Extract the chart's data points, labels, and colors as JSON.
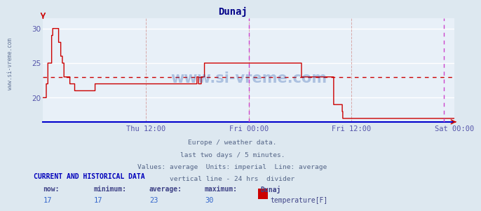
{
  "title": "Dunaj",
  "bg_color": "#dde8f0",
  "plot_bg_color": "#e8f0f8",
  "grid_color": "#ffffff",
  "line_color": "#cc0000",
  "avg_line_color": "#cc0000",
  "avg_line_value": 23,
  "vline_color": "#cc44cc",
  "vline_positions": [
    0.5,
    0.974
  ],
  "xlabel_color": "#5555aa",
  "title_color": "#000088",
  "xlabels": [
    "Thu 12:00",
    "Fri 00:00",
    "Fri 12:00",
    "Sat 00:00"
  ],
  "xlabels_xpos": [
    0.25,
    0.5,
    0.75,
    1.0
  ],
  "ylim": [
    16.5,
    31.5
  ],
  "yticks": [
    20,
    25,
    30
  ],
  "text_lines": [
    "Europe / weather data.",
    "last two days / 5 minutes.",
    "Values: average  Units: imperial  Line: average",
    "vertical line - 24 hrs  divider"
  ],
  "current_label": "CURRENT AND HISTORICAL DATA",
  "stat_headers": [
    "now:",
    "minimum:",
    "average:",
    "maximum:",
    "Dunaj"
  ],
  "stat_values": [
    "17",
    "17",
    "23",
    "30"
  ],
  "legend_label": "temperature[F]",
  "legend_color": "#cc0000",
  "watermark": "www.si-vreme.com",
  "spine_color": "#0000cc",
  "temperature_data": [
    20,
    20,
    20,
    20,
    20,
    20,
    22,
    22,
    22,
    25,
    25,
    25,
    25,
    25,
    25,
    25,
    29,
    29,
    30,
    30,
    30,
    30,
    30,
    30,
    30,
    30,
    30,
    30,
    30,
    28,
    28,
    28,
    28,
    26,
    26,
    26,
    25,
    25,
    25,
    23,
    23,
    23,
    23,
    23,
    23,
    23,
    23,
    23,
    23,
    23,
    22,
    22,
    22,
    22,
    22,
    22,
    22,
    22,
    22,
    21,
    21,
    21,
    21,
    21,
    21,
    21,
    21,
    21,
    21,
    21,
    21,
    21,
    21,
    21,
    21,
    21,
    21,
    21,
    21,
    21,
    21,
    21,
    21,
    21,
    21,
    21,
    21,
    21,
    21,
    21,
    21,
    21,
    21,
    21,
    21,
    21,
    21,
    22,
    22,
    22,
    22,
    22,
    22,
    22,
    22,
    22,
    22,
    22,
    22,
    22,
    22,
    22,
    22,
    22,
    22,
    22,
    22,
    22,
    22,
    22,
    22,
    22,
    22,
    22,
    22,
    22,
    22,
    22,
    22,
    22,
    22,
    22,
    22,
    22,
    22,
    22,
    22,
    22,
    22,
    22,
    22,
    22,
    22,
    22,
    22,
    22,
    22,
    22,
    22,
    22,
    22,
    22,
    22,
    22,
    22,
    22,
    22,
    22,
    22,
    22,
    22,
    22,
    22,
    22,
    22,
    22,
    22,
    22,
    22,
    22,
    22,
    22,
    22,
    22,
    22,
    22,
    22,
    22,
    22,
    22,
    22,
    22,
    22,
    22,
    22,
    22,
    22,
    22,
    22,
    22,
    22,
    22,
    22,
    22,
    22,
    22,
    22,
    22,
    22,
    22,
    22,
    22,
    22,
    22,
    22,
    22,
    22,
    22,
    22,
    22,
    22,
    22,
    22,
    22,
    22,
    22,
    22,
    22,
    22,
    22,
    22,
    22,
    22,
    22,
    22,
    22,
    22,
    22,
    22,
    22,
    22,
    22,
    22,
    22,
    22,
    22,
    22,
    22,
    22,
    22,
    22,
    22,
    22,
    22,
    22,
    22,
    22,
    22,
    22,
    22,
    22,
    22,
    22,
    22,
    22,
    22,
    22,
    22,
    22,
    22,
    22,
    22,
    22,
    22,
    22,
    22,
    22,
    22,
    22,
    22,
    22,
    22,
    22,
    22,
    22,
    22,
    22,
    22,
    22,
    22,
    22,
    22,
    22,
    22,
    22,
    22,
    22,
    23,
    23,
    23,
    22,
    22,
    22,
    22,
    22,
    23,
    23,
    23,
    23,
    23,
    23,
    25,
    25,
    25,
    25,
    25,
    25,
    25,
    25,
    25,
    25,
    25,
    25,
    25,
    25,
    25,
    25,
    25,
    25,
    25,
    25,
    25,
    25,
    25,
    25,
    25,
    25,
    25,
    25,
    25,
    25,
    25,
    25,
    25,
    25,
    25,
    25,
    25,
    25,
    25,
    25,
    25,
    25,
    25,
    25,
    25,
    25,
    25,
    25,
    25,
    25,
    25,
    25,
    25,
    25,
    25,
    25,
    25,
    25,
    25,
    25,
    25,
    25,
    25,
    25,
    25,
    25,
    25,
    25,
    25,
    25,
    25,
    25,
    25,
    25,
    25,
    25,
    25,
    25,
    25,
    25,
    25,
    25,
    25,
    25,
    25,
    25,
    25,
    25,
    25,
    25,
    25,
    25,
    25,
    25,
    25,
    25,
    25,
    25,
    25,
    25,
    25,
    25,
    25,
    25,
    25,
    25,
    25,
    25,
    25,
    25,
    25,
    25,
    25,
    25,
    25,
    25,
    25,
    25,
    25,
    25,
    25,
    25,
    25,
    25,
    25,
    25,
    25,
    25,
    25,
    25,
    25,
    25,
    25,
    25,
    25,
    25,
    25,
    25,
    25,
    25,
    25,
    25,
    25,
    25,
    25,
    25,
    25,
    25,
    25,
    25,
    25,
    25,
    25,
    25,
    25,
    25,
    25,
    25,
    25,
    25,
    25,
    25,
    25,
    25,
    25,
    25,
    25,
    25,
    25,
    25,
    25,
    25,
    25,
    25,
    25,
    25,
    25,
    25,
    25,
    25,
    25,
    23,
    23,
    23,
    23,
    23,
    23,
    23,
    23,
    23,
    23,
    23,
    23,
    23,
    23,
    23,
    23,
    23,
    23,
    23,
    23,
    23,
    23,
    23,
    23,
    23,
    23,
    23,
    23,
    23,
    23,
    23,
    23,
    23,
    23,
    23,
    23,
    23,
    23,
    23,
    23,
    23,
    23,
    23,
    23,
    23,
    23,
    23,
    23,
    23,
    23,
    23,
    23,
    23,
    23,
    23,
    23,
    23,
    23,
    23,
    23,
    19,
    19,
    19,
    19,
    19,
    19,
    19,
    19,
    19,
    19,
    19,
    19,
    19,
    19,
    19,
    19,
    18,
    17,
    17,
    17,
    17,
    17,
    17,
    17,
    17,
    17,
    17,
    17,
    17,
    17,
    17,
    17,
    17,
    17,
    17,
    17,
    17,
    17,
    17,
    17,
    17,
    17,
    17,
    17,
    17,
    17,
    17,
    17,
    17,
    17,
    17,
    17,
    17,
    17,
    17,
    17,
    17,
    17,
    17,
    17,
    17,
    17,
    17,
    17,
    17,
    17,
    17,
    17,
    17,
    17,
    17,
    17,
    17,
    17,
    17,
    17,
    17,
    17,
    17,
    17,
    17,
    17,
    17,
    17,
    17,
    17,
    17,
    17,
    17,
    17,
    17,
    17,
    17,
    17,
    17,
    17,
    17,
    17,
    17,
    17,
    17,
    17,
    17,
    17,
    17,
    17,
    17,
    17,
    17,
    17,
    17,
    17,
    17,
    17,
    17,
    17,
    17,
    17,
    17,
    17,
    17,
    17,
    17,
    17,
    17,
    17,
    17,
    17,
    17,
    17,
    17,
    17,
    17,
    17,
    17,
    17,
    17,
    17,
    17,
    17,
    17,
    17,
    17,
    17,
    17,
    17,
    17,
    17,
    17,
    17,
    17,
    17,
    17,
    17,
    17,
    17,
    17,
    17,
    17,
    17,
    17,
    17,
    17,
    17,
    17,
    17,
    17,
    17,
    17,
    17,
    17,
    17,
    17,
    17,
    17,
    17,
    17,
    17,
    17,
    17,
    17,
    17,
    17,
    17,
    17,
    17,
    17,
    17,
    17,
    17,
    17,
    17,
    17,
    17,
    17,
    17,
    17,
    17,
    17,
    17,
    17,
    17,
    17,
    17,
    17,
    17,
    17,
    17,
    17,
    17,
    17,
    17,
    17,
    17,
    17,
    17,
    17,
    17,
    17,
    17,
    17,
    17,
    17,
    17,
    17,
    17
  ]
}
